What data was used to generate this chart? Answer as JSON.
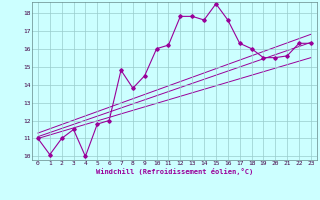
{
  "title": "",
  "xlabel": "Windchill (Refroidissement éolien,°C)",
  "x_main": [
    0,
    1,
    2,
    3,
    4,
    5,
    6,
    7,
    8,
    9,
    10,
    11,
    12,
    13,
    14,
    15,
    16,
    17,
    18,
    19,
    20,
    21,
    22,
    23
  ],
  "y_main": [
    11.0,
    10.1,
    11.0,
    11.5,
    10.0,
    11.8,
    12.0,
    14.8,
    13.8,
    14.5,
    16.0,
    16.2,
    17.8,
    17.8,
    17.6,
    18.5,
    17.6,
    16.3,
    16.0,
    15.5,
    15.5,
    15.6,
    16.3,
    16.3
  ],
  "line_color": "#990099",
  "bg_color": "#ccffff",
  "plot_bg": "#ccffff",
  "grid_color": "#99cccc",
  "ylim": [
    9.8,
    18.6
  ],
  "xlim": [
    -0.5,
    23.5
  ],
  "yticks": [
    10,
    11,
    12,
    13,
    14,
    15,
    16,
    17,
    18
  ],
  "xticks": [
    0,
    1,
    2,
    3,
    4,
    5,
    6,
    7,
    8,
    9,
    10,
    11,
    12,
    13,
    14,
    15,
    16,
    17,
    18,
    19,
    20,
    21,
    22,
    23
  ],
  "reg_lines": [
    {
      "x": [
        0,
        23
      ],
      "y": [
        11.1,
        16.35
      ]
    },
    {
      "x": [
        0,
        23
      ],
      "y": [
        11.0,
        15.5
      ]
    },
    {
      "x": [
        0,
        23
      ],
      "y": [
        11.3,
        16.8
      ]
    }
  ]
}
